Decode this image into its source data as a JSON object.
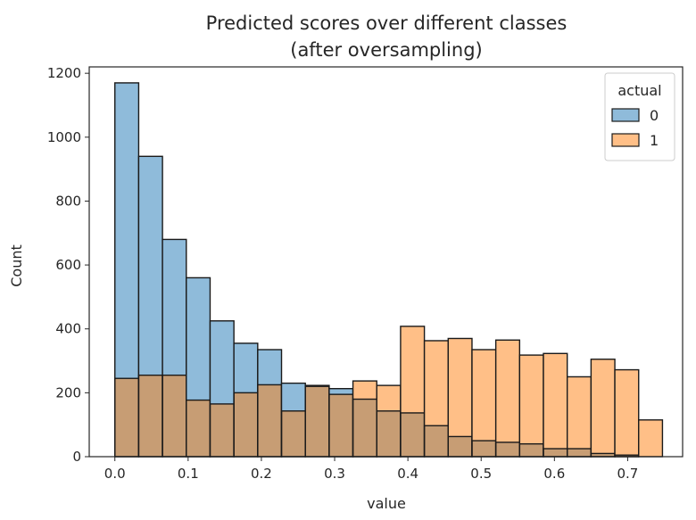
{
  "chart_data": {
    "type": "bar",
    "subtype": "overlaid-histogram",
    "title": [
      "Predicted scores over different classes",
      "(after oversampling)"
    ],
    "xlabel": "value",
    "ylabel": "Count",
    "xlim": [
      -0.035,
      0.775
    ],
    "ylim": [
      0,
      1220
    ],
    "xticks": [
      0.0,
      0.1,
      0.2,
      0.3,
      0.4,
      0.5,
      0.6,
      0.7
    ],
    "xtick_labels": [
      "0.0",
      "0.1",
      "0.2",
      "0.3",
      "0.4",
      "0.5",
      "0.6",
      "0.7"
    ],
    "yticks": [
      0,
      200,
      400,
      600,
      800,
      1000,
      1200
    ],
    "ytick_labels": [
      "0",
      "200",
      "400",
      "600",
      "800",
      "1000",
      "1200"
    ],
    "grid": false,
    "legend": {
      "title": "actual",
      "position": "top-right",
      "entries": [
        "0",
        "1"
      ]
    },
    "bin_edges": [
      0.0,
      0.0325,
      0.065,
      0.0975,
      0.13,
      0.1625,
      0.195,
      0.2275,
      0.26,
      0.2925,
      0.325,
      0.3575,
      0.39,
      0.4225,
      0.455,
      0.4875,
      0.52,
      0.5525,
      0.585,
      0.6175,
      0.65,
      0.6825,
      0.715,
      0.7475
    ],
    "series": [
      {
        "name": "0",
        "color": "#1f77b4",
        "values": [
          1170,
          940,
          680,
          560,
          425,
          355,
          335,
          230,
          220,
          213,
          180,
          143,
          137,
          97,
          63,
          50,
          45,
          40,
          25,
          25,
          10,
          5,
          0
        ]
      },
      {
        "name": "1",
        "color": "#ff7f0e",
        "values": [
          245,
          255,
          255,
          177,
          165,
          200,
          225,
          143,
          223,
          195,
          237,
          223,
          408,
          363,
          370,
          335,
          365,
          318,
          323,
          250,
          305,
          272,
          115
        ]
      }
    ]
  }
}
